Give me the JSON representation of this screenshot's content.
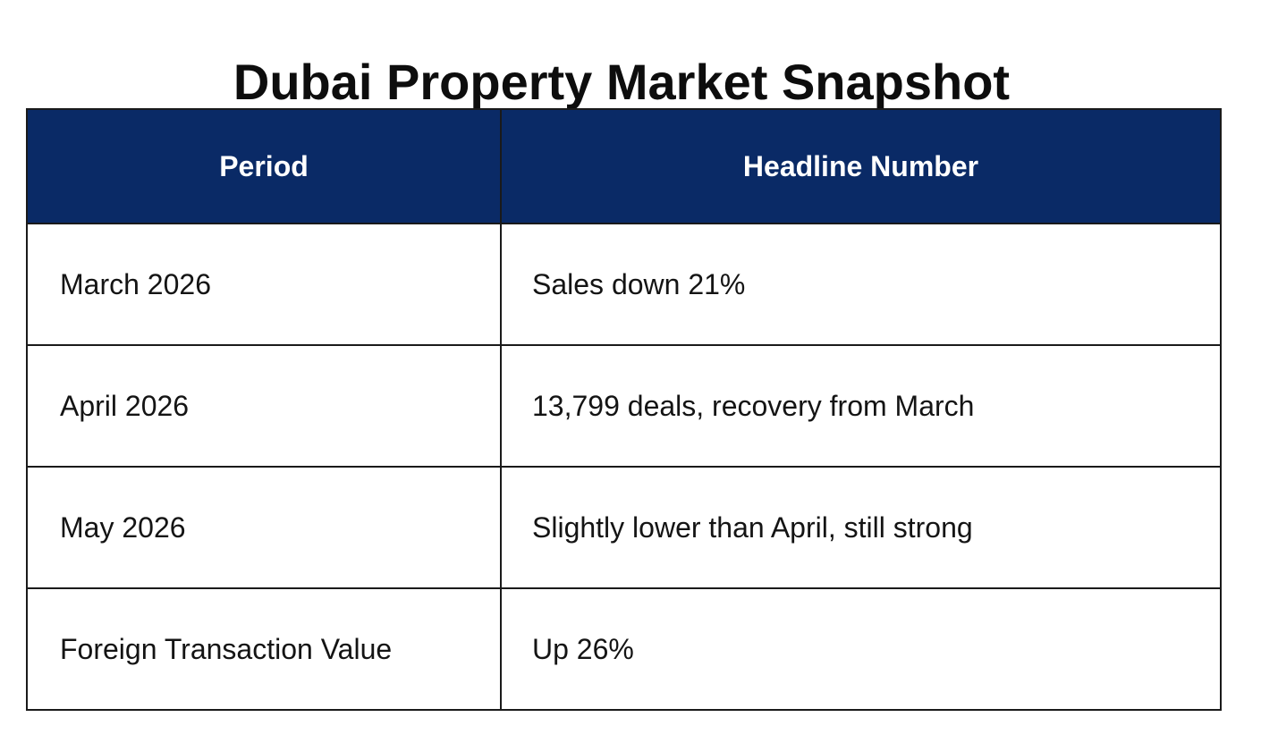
{
  "title": "Dubai Property Market Snapshot",
  "colors": {
    "header_background": "#0a2a66",
    "header_text": "#ffffff",
    "border": "#1a1a1a"
  },
  "table": {
    "headers": [
      "Period",
      "Headline Number"
    ],
    "rows": [
      {
        "period": "March 2026",
        "headline": "Sales down 21%"
      },
      {
        "period": "April 2026",
        "headline": "13,799 deals, recovery from March"
      },
      {
        "period": "May 2026",
        "headline": "Slightly lower than April, still strong"
      },
      {
        "period": "Foreign Transaction Value",
        "headline": "Up 26%"
      }
    ]
  }
}
